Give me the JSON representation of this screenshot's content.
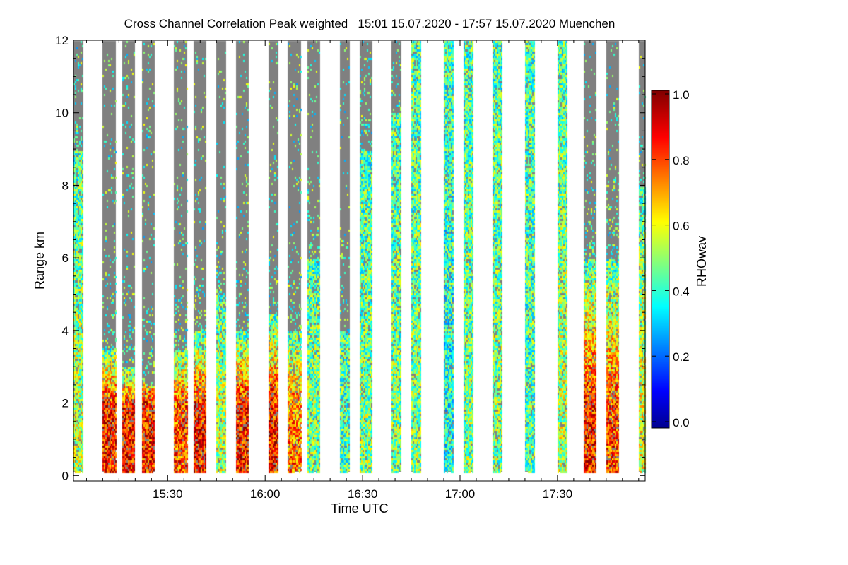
{
  "chart_data": {
    "type": "heatmap",
    "title": "Cross Channel Correlation Peak weighted   15:01 15.07.2020 - 17:57 15.07.2020 Muenchen",
    "xlabel": "Time UTC",
    "ylabel": "Range km",
    "xlim": [
      "15:01",
      "17:57"
    ],
    "ylim": [
      -0.15,
      12
    ],
    "x_ticks": [
      "15:30",
      "16:00",
      "16:30",
      "17:00",
      "17:30"
    ],
    "y_ticks": [
      "0",
      "2",
      "4",
      "6",
      "8",
      "10",
      "12"
    ],
    "colorbar": {
      "label": "RHOwav",
      "colormap": "jet",
      "range": [
        0.0,
        1.0
      ],
      "ticks": [
        "0.0",
        "0.2",
        "0.4",
        "0.6",
        "0.8",
        "1.0"
      ]
    },
    "no_signal_color": "#808080",
    "strips": [
      {
        "start": "15:01",
        "end": "15:04",
        "signal_top_km": 9,
        "low_level_rho": 0.55
      },
      {
        "start": "15:10",
        "end": "15:14",
        "signal_top_km": 3.5,
        "low_level_rho": 0.85
      },
      {
        "start": "15:16",
        "end": "15:20",
        "signal_top_km": 3,
        "low_level_rho": 0.85
      },
      {
        "start": "15:22",
        "end": "15:26",
        "signal_top_km": 2.5,
        "low_level_rho": 0.85
      },
      {
        "start": "15:32",
        "end": "15:36",
        "signal_top_km": 3.5,
        "low_level_rho": 0.8
      },
      {
        "start": "15:38",
        "end": "15:42",
        "signal_top_km": 4,
        "low_level_rho": 0.85
      },
      {
        "start": "15:45",
        "end": "15:48",
        "signal_top_km": 5,
        "low_level_rho": 0.55
      },
      {
        "start": "15:51",
        "end": "15:55",
        "signal_top_km": 4,
        "low_level_rho": 0.85
      },
      {
        "start": "16:01",
        "end": "16:04",
        "signal_top_km": 4.5,
        "low_level_rho": 0.85
      },
      {
        "start": "16:07",
        "end": "16:11",
        "signal_top_km": 4,
        "low_level_rho": 0.75
      },
      {
        "start": "16:13",
        "end": "16:17",
        "signal_top_km": 6,
        "low_level_rho": 0.5
      },
      {
        "start": "16:23",
        "end": "16:26",
        "signal_top_km": 4,
        "low_level_rho": 0.45
      },
      {
        "start": "16:29",
        "end": "16:33",
        "signal_top_km": 9,
        "low_level_rho": 0.5
      },
      {
        "start": "16:39",
        "end": "16:42",
        "signal_top_km": 10,
        "low_level_rho": 0.5
      },
      {
        "start": "16:45",
        "end": "16:48",
        "signal_top_km": 12,
        "low_level_rho": 0.5
      },
      {
        "start": "16:55",
        "end": "16:58",
        "signal_top_km": 12,
        "low_level_rho": 0.4
      },
      {
        "start": "17:01",
        "end": "17:04",
        "signal_top_km": 12,
        "low_level_rho": 0.5
      },
      {
        "start": "17:10",
        "end": "17:13",
        "signal_top_km": 12,
        "low_level_rho": 0.5
      },
      {
        "start": "17:20",
        "end": "17:23",
        "signal_top_km": 12,
        "low_level_rho": 0.45
      },
      {
        "start": "17:30",
        "end": "17:33",
        "signal_top_km": 12,
        "low_level_rho": 0.55
      },
      {
        "start": "17:38",
        "end": "17:42",
        "signal_top_km": 6,
        "low_level_rho": 0.85
      },
      {
        "start": "17:45",
        "end": "17:49",
        "signal_top_km": 6,
        "low_level_rho": 0.8
      },
      {
        "start": "17:55",
        "end": "17:57",
        "signal_top_km": 8,
        "low_level_rho": 0.6
      }
    ]
  }
}
